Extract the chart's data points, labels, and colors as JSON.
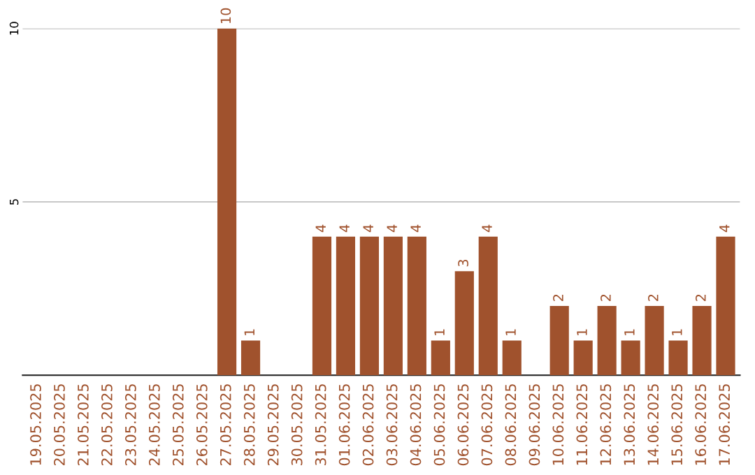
{
  "chart_data": {
    "type": "bar",
    "categories": [
      "19.05.2025",
      "20.05.2025",
      "21.05.2025",
      "22.05.2025",
      "23.05.2025",
      "24.05.2025",
      "25.05.2025",
      "26.05.2025",
      "27.05.2025",
      "28.05.2025",
      "29.05.2025",
      "30.05.2025",
      "31.05.2025",
      "01.06.2025",
      "02.06.2025",
      "03.06.2025",
      "04.06.2025",
      "05.06.2025",
      "06.06.2025",
      "07.06.2025",
      "08.06.2025",
      "09.06.2025",
      "10.06.2025",
      "11.06.2025",
      "12.06.2025",
      "13.06.2025",
      "14.06.2025",
      "15.06.2025",
      "16.06.2025",
      "17.06.2025"
    ],
    "values": [
      0,
      0,
      0,
      0,
      0,
      0,
      0,
      0,
      10,
      1,
      0,
      0,
      4,
      4,
      4,
      4,
      4,
      1,
      3,
      4,
      1,
      0,
      2,
      1,
      2,
      1,
      2,
      1,
      2,
      4
    ],
    "value_labels": [
      null,
      null,
      null,
      null,
      null,
      null,
      null,
      null,
      "10",
      "1",
      null,
      null,
      "4",
      "4",
      "4",
      "4",
      "4",
      "1",
      "3",
      "4",
      "1",
      null,
      "2",
      "1",
      "2",
      "1",
      "2",
      "1",
      "2",
      "4"
    ],
    "color": "#a0522d",
    "ylim": [
      0,
      10
    ],
    "yticks": [
      5,
      10
    ],
    "grid": "y"
  }
}
